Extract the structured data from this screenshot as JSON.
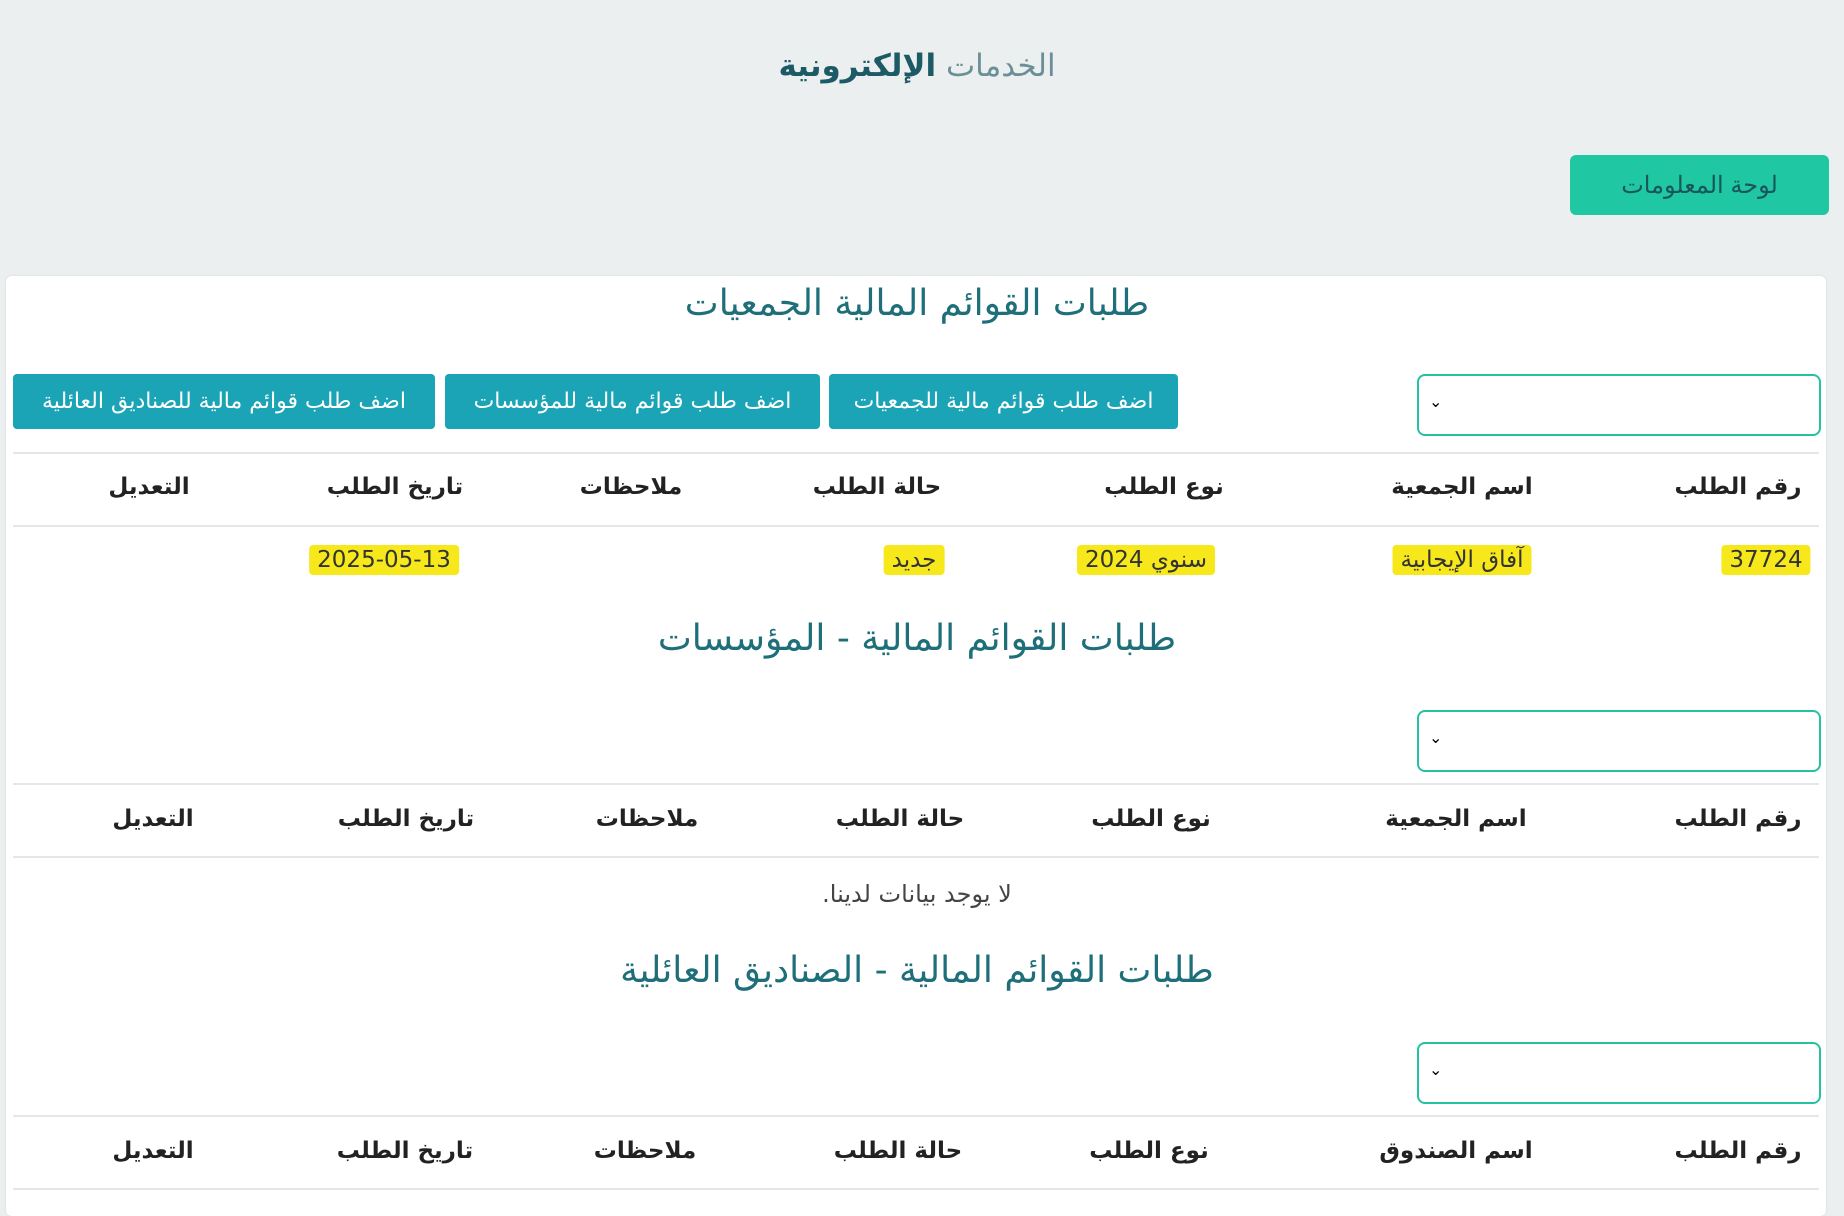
{
  "header": {
    "title_light": "الخدمات",
    "title_bold": "الإلكترونية"
  },
  "dashboard_button": "لوحة المعلومات",
  "colors": {
    "accent_green": "#1fc7a3",
    "button_teal": "#1ba3b6",
    "title_teal": "#1f6f7a",
    "highlight": "#f6e81a"
  },
  "add_buttons": [
    "اضف طلب قوائم مالية للجمعيات",
    "اضف طلب قوائم مالية للمؤسسات",
    "اضف طلب قوائم مالية للصناديق العائلية"
  ],
  "sections": [
    {
      "title": "طلبات القوائم المالية الجمعيات",
      "select_icon": "chevron-down-icon",
      "columns": [
        "رقم الطلب",
        "اسم الجمعية",
        "نوع الطلب",
        "حالة الطلب",
        "ملاحظات",
        "تاريخ الطلب",
        "التعديل"
      ],
      "rows": [
        {
          "id": "37724",
          "name": "آفاق الإيجابية",
          "type": "سنوي 2024",
          "status": "جديد",
          "notes": "",
          "date": "2025-05-13",
          "edit": ""
        }
      ]
    },
    {
      "title": "طلبات القوائم المالية - المؤسسات",
      "columns": [
        "رقم الطلب",
        "اسم الجمعية",
        "نوع الطلب",
        "حالة الطلب",
        "ملاحظات",
        "تاريخ الطلب",
        "التعديل"
      ],
      "empty_text": "لا يوجد بيانات لدينا."
    },
    {
      "title": "طلبات القوائم المالية - الصناديق العائلية",
      "columns": [
        "رقم الطلب",
        "اسم الصندوق",
        "نوع الطلب",
        "حالة الطلب",
        "ملاحظات",
        "تاريخ الطلب",
        "التعديل"
      ]
    }
  ]
}
